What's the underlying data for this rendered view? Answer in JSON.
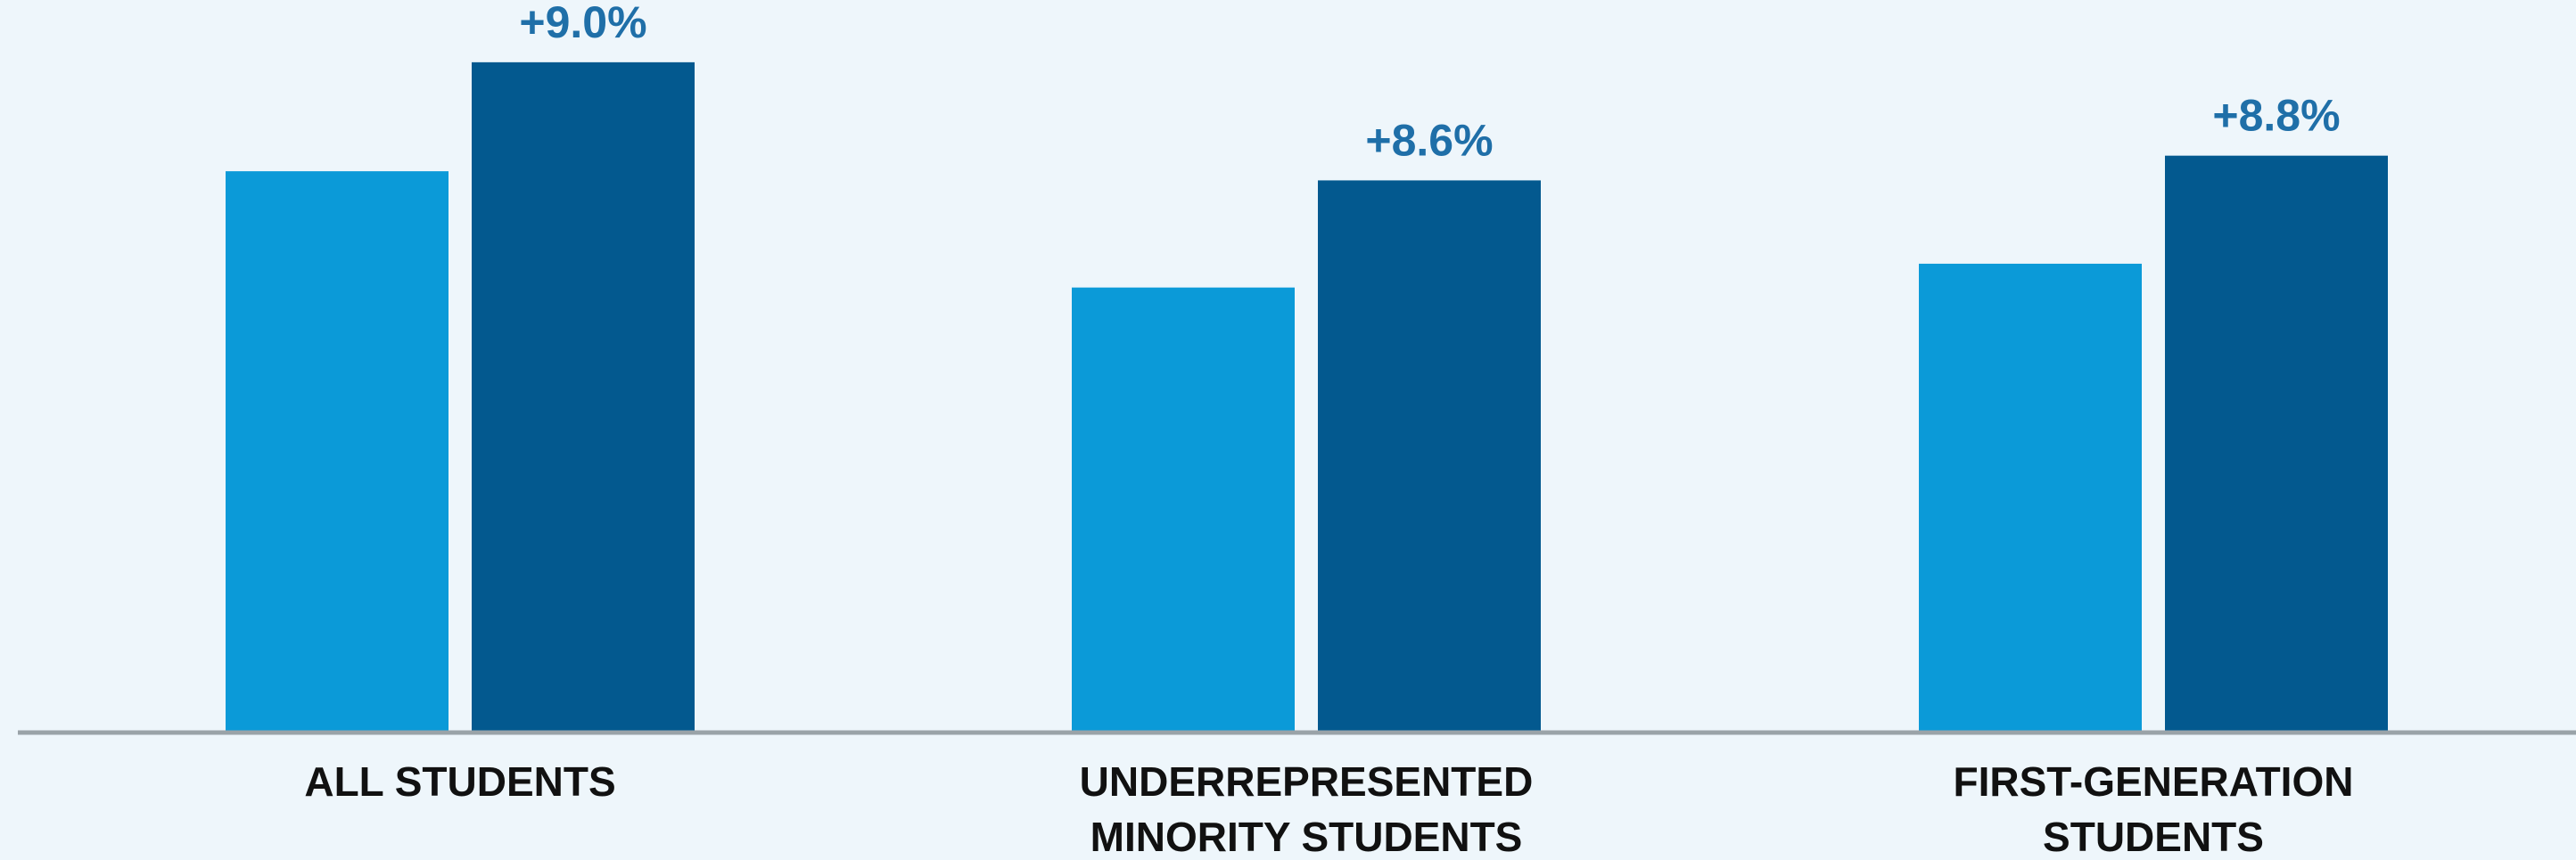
{
  "chart_data": {
    "type": "bar",
    "title": "",
    "xlabel": "",
    "ylabel": "",
    "categories": [
      [
        "ALL STUDENTS"
      ],
      [
        "UNDERREPRESENTED",
        "MINORITY STUDENTS"
      ],
      [
        "FIRST-GENERATION",
        "STUDENTS"
      ]
    ],
    "series": [
      {
        "color": "#0b9ad8",
        "values": [
          61.3,
          48.6,
          51.2
        ]
      },
      {
        "color": "#03598f",
        "values": [
          73.2,
          60.3,
          63.0
        ]
      }
    ],
    "annotations": [
      "+9.0%",
      "+8.6%",
      "+8.8%"
    ],
    "annotation_color": "#1f6fa8",
    "ylim": [
      0,
      80
    ],
    "grid": false,
    "axis_color": "#9aa3a8"
  }
}
